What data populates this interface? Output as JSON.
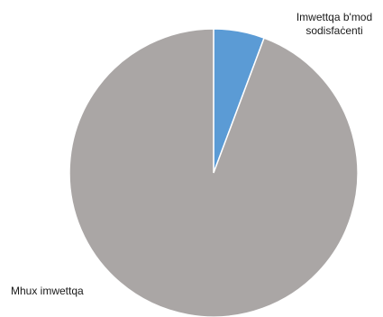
{
  "chart_data": {
    "type": "pie",
    "title": "",
    "slices": [
      {
        "label": "Imwettqa b'mod sodisfaċenti",
        "value": 5.7,
        "color": "#5b9bd5"
      },
      {
        "label": "Mhux imwettqa",
        "value": 94.3,
        "color": "#aaa6a5"
      }
    ],
    "start_angle_deg": 0,
    "direction": "clockwise",
    "legend": "none"
  }
}
